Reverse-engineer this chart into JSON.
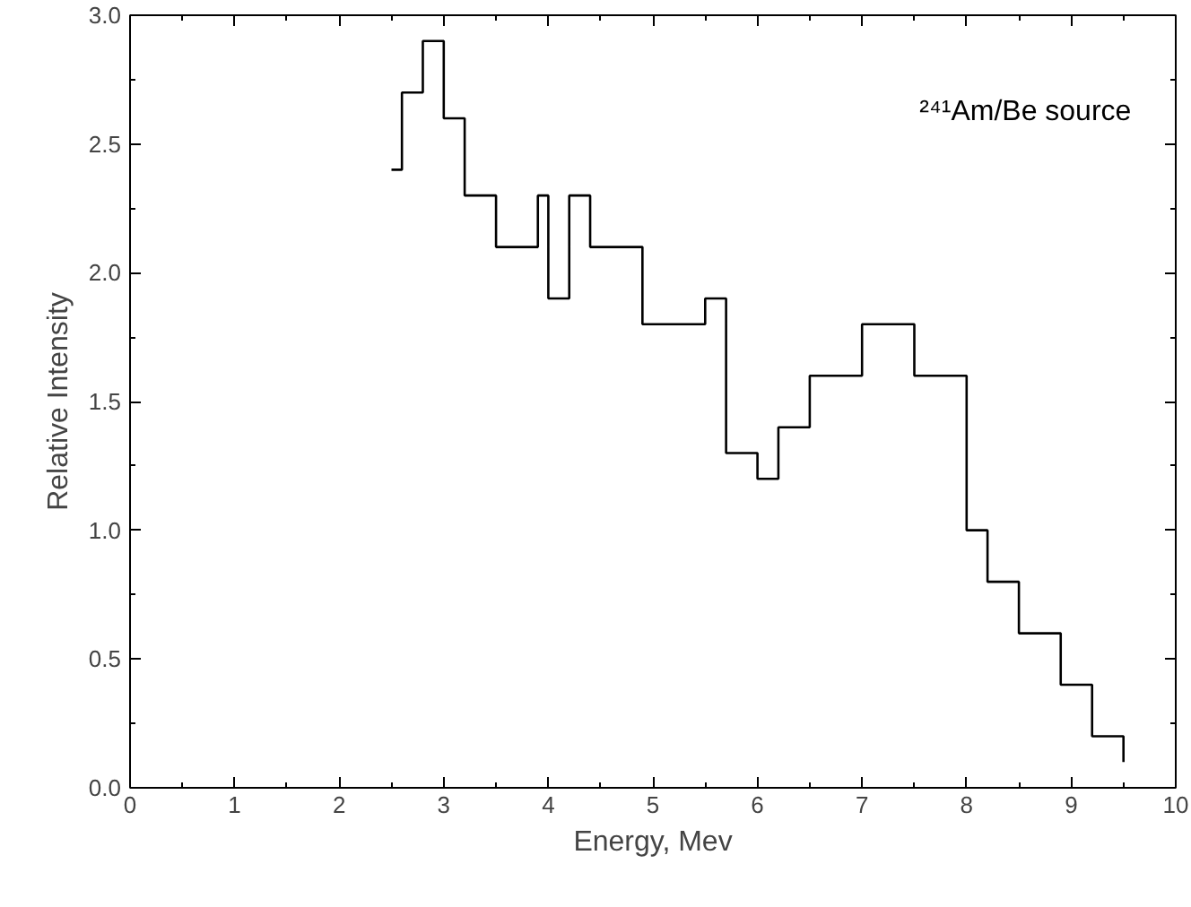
{
  "chart_data": {
    "type": "step",
    "xlabel": "Energy, Mev",
    "ylabel": "Relative Intensity",
    "annotations": [
      "²⁴¹Am/Be source"
    ],
    "series": [
      {
        "color": "#000000",
        "x": [
          2.5,
          2.6,
          2.8,
          3.0,
          3.2,
          3.5,
          3.9,
          4.0,
          4.2,
          4.4,
          4.9,
          5.5,
          5.7,
          6.0,
          6.2,
          6.5,
          7.0,
          7.5,
          8.0,
          8.2,
          8.5,
          8.9,
          9.2,
          9.5
        ],
        "values": [
          2.4,
          2.7,
          2.9,
          2.6,
          2.3,
          2.1,
          2.3,
          1.9,
          2.3,
          2.1,
          1.8,
          1.9,
          1.3,
          1.2,
          1.4,
          1.6,
          1.8,
          1.6,
          1.0,
          0.8,
          0.6,
          0.4,
          0.2,
          0.1
        ]
      }
    ],
    "xlim": [
      0,
      10
    ],
    "xticks": [
      0,
      1,
      2,
      3,
      4,
      5,
      6,
      7,
      8,
      9,
      10
    ],
    "ylim": [
      0,
      3.0
    ],
    "yticks": [
      {
        "value": 0,
        "label": "0.0"
      },
      {
        "value": 0.5,
        "label": "0.5"
      },
      {
        "value": 1,
        "label": "1.0"
      },
      {
        "value": 1.5,
        "label": "1.5"
      },
      {
        "value": 2,
        "label": "2.0"
      },
      {
        "value": 2.5,
        "label": "2.5"
      },
      {
        "value": 3,
        "label": "3.0"
      }
    ],
    "grid": false
  }
}
